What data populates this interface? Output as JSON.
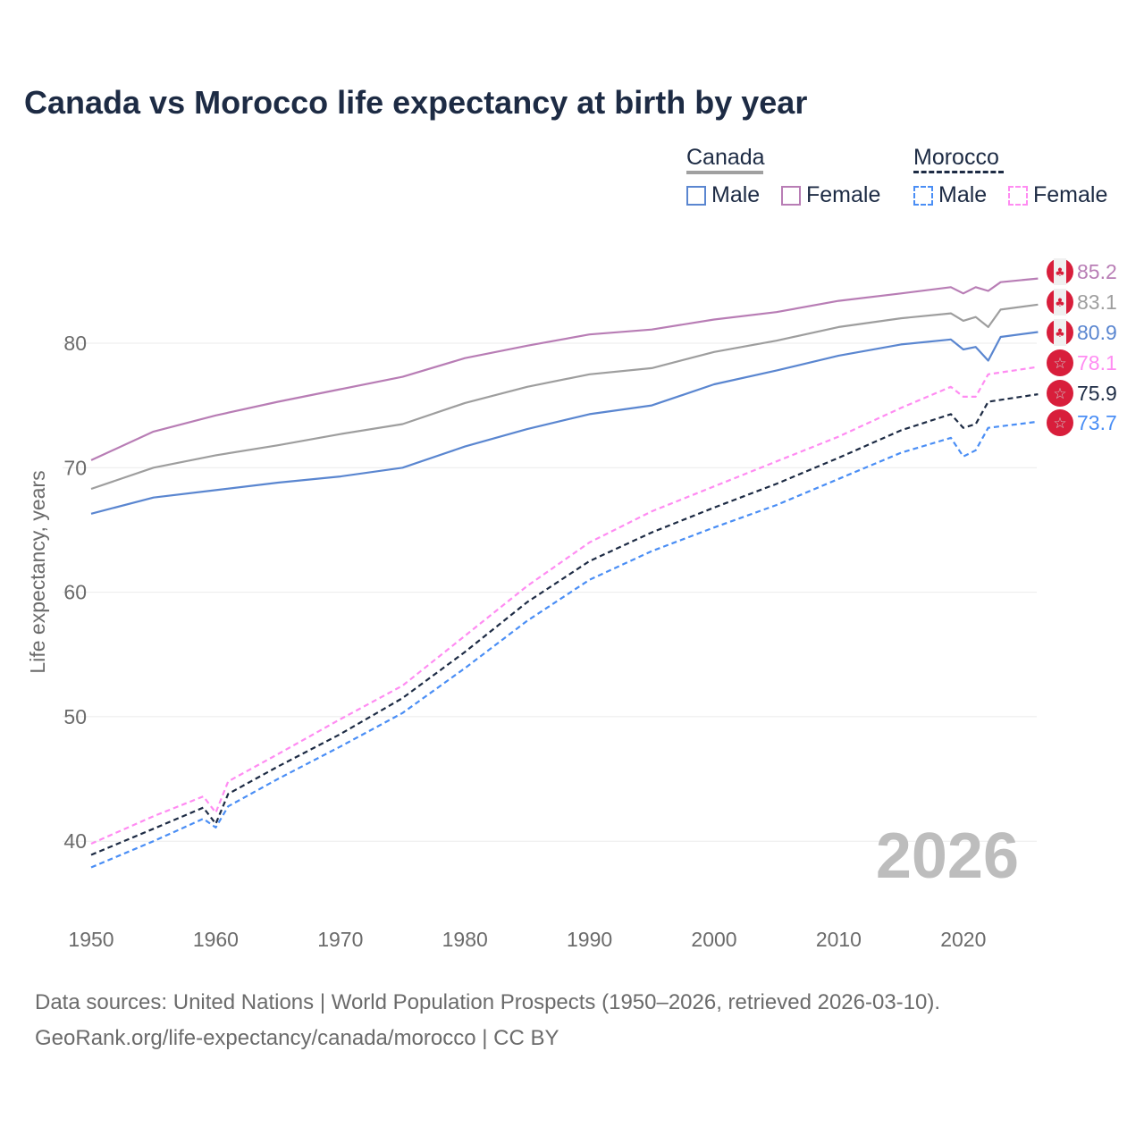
{
  "chart_data": {
    "type": "line",
    "title": "Canada vs Morocco life expectancy at birth by year",
    "xlabel": "",
    "ylabel": "Life expectancy, years",
    "xlim": [
      1950,
      2026
    ],
    "ylim": [
      35,
      88
    ],
    "xticks": [
      "1950",
      "1960",
      "1970",
      "1980",
      "1990",
      "2000",
      "2010",
      "2020"
    ],
    "yticks": [
      "40",
      "50",
      "60",
      "70",
      "80"
    ],
    "grid": true,
    "watermark_year": "2026",
    "legend": {
      "placement": "top-right",
      "groups": [
        {
          "name": "Canada",
          "items": [
            "Male",
            "Female"
          ]
        },
        {
          "name": "Morocco",
          "items": [
            "Male",
            "Female"
          ]
        }
      ]
    },
    "series": [
      {
        "name": "Canada Female",
        "country": "Canada",
        "color": "#b87db5",
        "dashed": false,
        "end_label": "85.2",
        "x": [
          1950,
          1955,
          1960,
          1965,
          1970,
          1975,
          1980,
          1985,
          1990,
          1995,
          2000,
          2005,
          2010,
          2015,
          2019,
          2020,
          2021,
          2022,
          2023,
          2026
        ],
        "y": [
          70.6,
          72.9,
          74.2,
          75.3,
          76.3,
          77.3,
          78.8,
          79.8,
          80.7,
          81.1,
          81.9,
          82.5,
          83.4,
          84.0,
          84.5,
          84.0,
          84.5,
          84.2,
          84.9,
          85.2
        ]
      },
      {
        "name": "Canada Total",
        "country": "Canada",
        "color": "#9e9e9e",
        "dashed": false,
        "end_label": "83.1",
        "x": [
          1950,
          1955,
          1960,
          1965,
          1970,
          1975,
          1980,
          1985,
          1990,
          1995,
          2000,
          2005,
          2010,
          2015,
          2019,
          2020,
          2021,
          2022,
          2023,
          2026
        ],
        "y": [
          68.3,
          70.0,
          71.0,
          71.8,
          72.7,
          73.5,
          75.2,
          76.5,
          77.5,
          78.0,
          79.3,
          80.2,
          81.3,
          82.0,
          82.4,
          81.8,
          82.1,
          81.3,
          82.7,
          83.1
        ]
      },
      {
        "name": "Canada Male",
        "country": "Canada",
        "color": "#5a86d0",
        "dashed": false,
        "end_label": "80.9",
        "x": [
          1950,
          1955,
          1960,
          1965,
          1970,
          1975,
          1980,
          1985,
          1990,
          1995,
          2000,
          2005,
          2010,
          2015,
          2019,
          2020,
          2021,
          2022,
          2023,
          2026
        ],
        "y": [
          66.3,
          67.6,
          68.2,
          68.8,
          69.3,
          70.0,
          71.7,
          73.1,
          74.3,
          75.0,
          76.7,
          77.8,
          79.0,
          79.9,
          80.3,
          79.5,
          79.7,
          78.6,
          80.5,
          80.9
        ]
      },
      {
        "name": "Morocco Female",
        "country": "Morocco",
        "color": "#ff8cf2",
        "dashed": true,
        "end_label": "78.1",
        "x": [
          1950,
          1955,
          1959,
          1960,
          1961,
          1965,
          1970,
          1975,
          1980,
          1985,
          1990,
          1995,
          2000,
          2005,
          2010,
          2015,
          2019,
          2020,
          2021,
          2022,
          2026
        ],
        "y": [
          39.8,
          42.0,
          43.6,
          42.3,
          44.8,
          47.0,
          49.8,
          52.5,
          56.5,
          60.5,
          64.0,
          66.5,
          68.5,
          70.5,
          72.5,
          74.8,
          76.5,
          75.7,
          75.7,
          77.5,
          78.1
        ]
      },
      {
        "name": "Morocco Total",
        "country": "Morocco",
        "color": "#1d2b44",
        "dashed": true,
        "end_label": "75.9",
        "x": [
          1950,
          1955,
          1959,
          1960,
          1961,
          1965,
          1970,
          1975,
          1980,
          1985,
          1990,
          1995,
          2000,
          2005,
          2010,
          2015,
          2019,
          2020,
          2021,
          2022,
          2026
        ],
        "y": [
          38.9,
          41.0,
          42.7,
          41.4,
          43.8,
          46.0,
          48.6,
          51.5,
          55.2,
          59.2,
          62.5,
          64.8,
          66.8,
          68.7,
          70.8,
          73.0,
          74.3,
          73.2,
          73.5,
          75.3,
          75.9
        ]
      },
      {
        "name": "Morocco Male",
        "country": "Morocco",
        "color": "#4a8ef5",
        "dashed": true,
        "end_label": "73.7",
        "x": [
          1950,
          1955,
          1959,
          1960,
          1961,
          1965,
          1970,
          1975,
          1980,
          1985,
          1990,
          1995,
          2000,
          2005,
          2010,
          2015,
          2019,
          2020,
          2021,
          2022,
          2026
        ],
        "y": [
          37.9,
          40.0,
          41.8,
          41.1,
          42.8,
          45.0,
          47.6,
          50.3,
          53.9,
          57.7,
          61.0,
          63.3,
          65.2,
          67.0,
          69.1,
          71.2,
          72.4,
          70.9,
          71.4,
          73.2,
          73.7
        ]
      }
    ]
  },
  "footer": {
    "line1": "Data sources: United Nations | World Population Prospects (1950–2026, retrieved 2026-03-10).",
    "line2": "GeoRank.org/life-expectancy/canada/morocco | CC BY"
  }
}
